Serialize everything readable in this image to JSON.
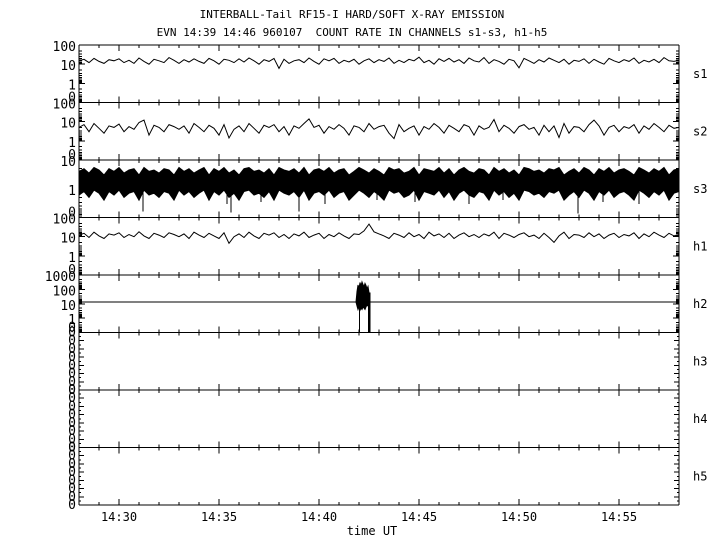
{
  "colors": {
    "fg": "#000000",
    "bg": "#ffffff"
  },
  "chart_data": {
    "type": "line",
    "title": "INTERBALL-Tail RF15-I HARD/SOFT X-RAY EMISSION",
    "subtitle": "EVN 14:39 14:46 960107  COUNT RATE IN CHANNELS s1-s3, h1-h5",
    "xlabel": "time UT",
    "x_start_ut": "14:28",
    "x_end_ut": "14:58",
    "x_total_minutes": 30,
    "x_minor_step_min": 1,
    "x_ticks": [
      {
        "min": 2,
        "label": "14:30"
      },
      {
        "min": 7,
        "label": "14:35"
      },
      {
        "min": 12,
        "label": "14:40"
      },
      {
        "min": 17,
        "label": "14:45"
      },
      {
        "min": 22,
        "label": "14:50"
      },
      {
        "min": 27,
        "label": "14:55"
      }
    ],
    "grid": false,
    "legend": "channel labels on right side",
    "panels": [
      {
        "channel": "s1",
        "right_label": "s1",
        "scale": "log",
        "y_top": 100,
        "decades": 3,
        "ytick_labels": [
          "100",
          "10",
          "1",
          "0"
        ],
        "series": {
          "type": "line",
          "t_start": 0,
          "t_step": 0.25,
          "values": [
            15,
            18,
            12,
            20,
            14,
            11,
            17,
            15,
            19,
            12,
            16,
            11,
            21,
            14,
            10,
            18,
            15,
            12,
            22,
            16,
            11,
            17,
            13,
            19,
            14,
            11,
            20,
            15,
            10,
            18,
            16,
            12,
            19,
            13,
            21,
            15,
            10,
            17,
            14,
            20,
            6,
            18,
            11,
            15,
            17,
            12,
            21,
            14,
            10,
            19,
            15,
            20,
            11,
            16,
            13,
            18,
            10,
            15,
            19,
            12,
            17,
            14,
            21,
            11,
            16,
            12,
            18,
            15,
            23,
            12,
            16,
            10,
            19,
            14,
            20,
            13,
            17,
            11,
            21,
            15,
            13,
            22,
            11,
            17,
            14,
            10,
            18,
            15,
            6.5,
            20,
            15,
            11,
            17,
            13,
            21,
            16,
            12,
            18,
            10,
            16,
            14,
            19,
            11,
            18,
            13,
            10,
            20,
            15,
            12,
            17,
            14,
            21,
            11,
            16,
            13,
            18,
            12,
            22,
            15,
            14,
            16
          ]
        }
      },
      {
        "channel": "s2",
        "right_label": "s2",
        "scale": "log",
        "y_top": 100,
        "decades": 3,
        "ytick_labels": [
          "100",
          "10",
          "1",
          "0"
        ],
        "series": {
          "type": "line",
          "t_start": 0,
          "t_step": 0.25,
          "values": [
            5,
            7,
            3,
            8,
            4.5,
            2.5,
            6,
            5,
            7.5,
            3,
            5.5,
            4,
            9,
            12,
            2,
            6.5,
            5,
            3,
            7,
            5.5,
            4,
            6,
            2.5,
            8,
            5,
            3,
            6.5,
            4.5,
            2,
            7,
            1.4,
            4,
            6,
            3,
            8,
            4.5,
            2.5,
            6.5,
            5,
            7,
            3,
            5.5,
            2,
            6,
            4.5,
            8,
            14,
            5,
            6.5,
            2.5,
            5.5,
            4,
            7,
            4.5,
            2,
            6,
            5,
            3,
            8,
            4,
            5.5,
            6.5,
            2.5,
            1.3,
            7,
            3,
            4.5,
            6,
            2,
            5.5,
            4,
            8,
            5,
            2.5,
            6.5,
            4.5,
            3,
            7,
            5.5,
            2,
            6,
            4,
            5,
            13,
            3,
            6.5,
            4.5,
            2.5,
            5.5,
            7,
            4,
            5,
            2,
            6.5,
            3,
            6,
            1.5,
            8,
            2.5,
            5.5,
            5,
            3,
            7,
            12,
            6,
            2,
            5,
            6.5,
            3,
            5.5,
            4.5,
            7,
            2.5,
            6,
            4,
            8,
            5,
            3,
            6.5,
            4.5,
            5
          ]
        }
      },
      {
        "channel": "s3",
        "right_label": "s3",
        "scale": "log",
        "y_top": 10,
        "decades": 2,
        "ytick_labels": [
          "10",
          "1",
          "0"
        ],
        "series": {
          "type": "band",
          "t_start": 0,
          "t_step": 0.25,
          "hi": [
            4,
            5,
            3.5,
            5.5,
            4.5,
            3,
            5,
            4,
            5.5,
            3.5,
            4.5,
            5,
            3,
            5.5,
            4,
            4.5,
            3.5,
            5,
            4.5,
            3,
            5.5,
            4,
            5,
            3.5,
            4.5,
            5.5,
            3,
            5,
            4,
            5.5,
            3.5,
            4.5,
            3,
            5,
            5.5,
            4,
            4.5,
            3.5,
            5,
            3,
            5.5,
            4.5,
            4,
            5,
            3.5,
            5.5,
            3,
            4.5,
            5,
            4,
            5.5,
            3.5,
            4.5,
            5,
            3,
            4,
            5.5,
            4.5,
            3.5,
            5,
            4,
            3,
            5.5,
            4.5,
            5,
            3.5,
            4,
            5.5,
            3,
            5,
            4.5,
            4,
            5.5,
            3.5,
            5,
            3,
            4.5,
            5.5,
            4,
            3.5,
            5,
            4.5,
            3,
            5.5,
            4,
            5,
            3.5,
            4.5,
            3,
            5.5,
            5,
            4,
            4.5,
            3.5,
            5,
            4.5,
            5.5,
            3,
            4,
            5,
            3.5,
            5.5,
            4.5,
            3,
            5,
            4,
            5.5,
            3.5,
            4.5,
            5,
            4,
            3,
            5.5,
            4.5,
            3.5,
            5,
            4,
            5.5,
            3,
            4.5,
            5
          ],
          "lo": [
            0.6,
            0.8,
            0.5,
            0.9,
            0.7,
            0.4,
            0.8,
            0.6,
            0.9,
            0.5,
            0.7,
            0.8,
            0.4,
            0.9,
            0.6,
            0.7,
            0.5,
            0.8,
            0.7,
            0.4,
            0.9,
            0.6,
            0.8,
            0.5,
            0.7,
            0.9,
            0.4,
            0.8,
            0.6,
            0.9,
            0.5,
            0.7,
            0.4,
            0.8,
            0.9,
            0.6,
            0.7,
            0.5,
            0.8,
            0.4,
            0.9,
            0.7,
            0.6,
            0.8,
            0.5,
            0.9,
            0.4,
            0.7,
            0.8,
            0.6,
            0.9,
            0.5,
            0.7,
            0.8,
            0.4,
            0.6,
            0.9,
            0.7,
            0.5,
            0.8,
            0.6,
            0.4,
            0.9,
            0.7,
            0.8,
            0.5,
            0.6,
            0.9,
            0.4,
            0.8,
            0.7,
            0.6,
            0.9,
            0.5,
            0.8,
            0.4,
            0.7,
            0.9,
            0.6,
            0.5,
            0.8,
            0.7,
            0.4,
            0.9,
            0.6,
            0.8,
            0.5,
            0.7,
            0.4,
            0.9,
            0.8,
            0.6,
            0.7,
            0.5,
            0.8,
            0.7,
            0.9,
            0.4,
            0.6,
            0.8,
            0.5,
            0.9,
            0.7,
            0.4,
            0.8,
            0.6,
            0.9,
            0.5,
            0.7,
            0.8,
            0.6,
            0.4,
            0.9,
            0.7,
            0.5,
            0.8,
            0.6,
            0.9,
            0.4,
            0.7,
            0.8
          ]
        },
        "spikes": [
          [
            3.2,
            0.16
          ],
          [
            7.4,
            0.3
          ],
          [
            7.6,
            0.15
          ],
          [
            9.1,
            0.35
          ],
          [
            11.0,
            0.16
          ],
          [
            12.3,
            0.3
          ],
          [
            14.9,
            0.4
          ],
          [
            16.8,
            0.35
          ],
          [
            19.5,
            0.3
          ],
          [
            21.2,
            0.4
          ],
          [
            24.95,
            0.14
          ],
          [
            26.2,
            0.35
          ],
          [
            28.0,
            0.3
          ]
        ]
      },
      {
        "channel": "h1",
        "right_label": "h1",
        "scale": "log",
        "y_top": 100,
        "decades": 3,
        "ytick_labels": [
          "100",
          "10",
          "1",
          "0"
        ],
        "series": {
          "type": "line",
          "t_start": 0,
          "t_step": 0.25,
          "values": [
            12,
            15,
            9,
            17,
            11,
            8,
            14,
            12,
            16,
            9,
            13,
            10,
            18,
            11,
            8,
            15,
            12,
            9,
            16,
            13,
            10,
            14,
            8,
            17,
            12,
            9,
            15,
            11,
            8,
            16,
            4.5,
            10,
            14,
            9,
            17,
            11,
            8,
            15,
            12,
            16,
            9,
            13,
            8,
            14,
            11,
            17,
            9,
            12,
            15,
            8,
            13,
            10,
            16,
            11,
            8,
            14,
            13,
            20,
            45,
            18,
            14,
            11,
            8,
            15,
            12,
            9,
            16,
            10,
            13,
            8,
            17,
            11,
            14,
            9,
            15,
            8,
            12,
            16,
            10,
            13,
            9,
            14,
            11,
            17,
            8,
            15,
            12,
            9,
            13,
            16,
            10,
            12,
            8,
            15,
            9,
            5,
            11,
            17,
            8,
            13,
            12,
            9,
            16,
            10,
            14,
            8,
            12,
            15,
            9,
            13,
            11,
            16,
            8,
            14,
            10,
            17,
            12,
            9,
            15,
            11,
            13
          ]
        }
      },
      {
        "channel": "h2",
        "right_label": "h2",
        "scale": "log",
        "y_top": 1000,
        "decades": 4,
        "ytick_labels": [
          "1000",
          "100",
          "10",
          "1",
          "0"
        ],
        "series": {
          "type": "baseline-burst",
          "baseline": 13,
          "burst": {
            "t": [
              13.85,
              13.9,
              13.95,
              14.0,
              14.05,
              14.1,
              14.15,
              14.2,
              14.25,
              14.3,
              14.35,
              14.4,
              14.45,
              14.5,
              14.55
            ],
            "hi": [
              13,
              70,
              200,
              120,
              300,
              180,
              330,
              220,
              150,
              260,
              190,
              110,
              160,
              60,
              13
            ],
            "lo": [
              13,
              7,
              4,
              6,
              3.5,
              5,
              4,
              6,
              5,
              4,
              6,
              8,
              7,
              10,
              13
            ]
          },
          "dropouts": [
            {
              "t": 14.02,
              "w": 1
            },
            {
              "t": 14.5,
              "w": 2.5
            }
          ]
        }
      },
      {
        "channel": "h3",
        "right_label": "h3",
        "scale": "zero",
        "ytick_labels": [
          "0",
          "0",
          "0",
          "0",
          "0",
          "0",
          "0",
          "0"
        ],
        "series": null
      },
      {
        "channel": "h4",
        "right_label": "h4",
        "scale": "zero",
        "ytick_labels": [
          "0",
          "0",
          "0",
          "0",
          "0",
          "0",
          "0",
          "0"
        ],
        "series": null
      },
      {
        "channel": "h5",
        "right_label": "h5",
        "scale": "zero",
        "ytick_labels": [
          "0",
          "0",
          "0",
          "0",
          "0",
          "0",
          "0",
          "0"
        ],
        "series": null
      }
    ]
  }
}
